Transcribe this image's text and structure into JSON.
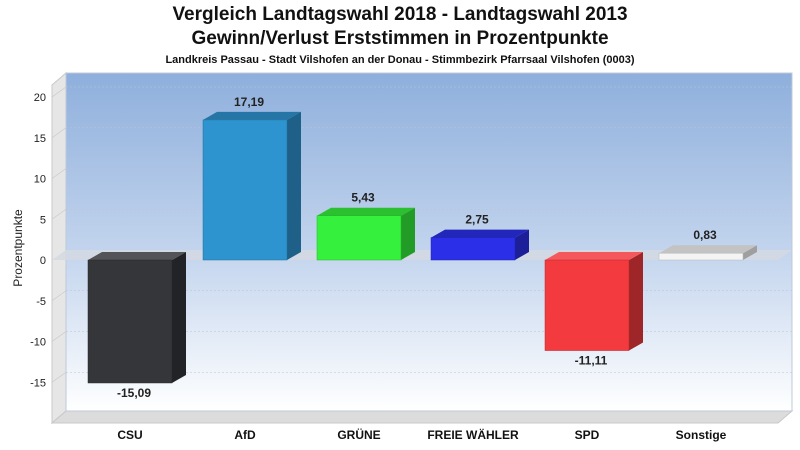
{
  "titles": {
    "line1": "Vergleich Landtagswahl 2018 - Landtagswahl 2013",
    "line2": "Gewinn/Verlust Erststimmen in Prozentpunkte",
    "subtitle": "Landkreis Passau - Stadt Vilshofen an der Donau - Stimmbezirk Pfarrsaal Vilshofen (0003)"
  },
  "chart_data": {
    "type": "bar",
    "title": "Vergleich Landtagswahl 2018 - Landtagswahl 2013",
    "subtitle": "Gewinn/Verlust Erststimmen in Prozentpunkte",
    "xlabel": "",
    "ylabel": "Prozentpunkte",
    "ylim": [
      -20,
      22
    ],
    "yticks": [
      20,
      15,
      10,
      5,
      0,
      -5,
      -10,
      -15
    ],
    "grid": true,
    "categories": [
      "CSU",
      "AfD",
      "GRÜNE",
      "FREIE WÄHLER",
      "SPD",
      "Sonstige"
    ],
    "values": [
      -15.09,
      17.19,
      5.43,
      2.75,
      -11.11,
      0.83
    ],
    "value_labels": [
      "-15,09",
      "17,19",
      "5,43",
      "2,75",
      "-11,11",
      "0,83"
    ],
    "colors": [
      "#35363a",
      "#2e94cf",
      "#35f03c",
      "#2b2fe8",
      "#f33a3f",
      "#f4f4f4"
    ]
  }
}
